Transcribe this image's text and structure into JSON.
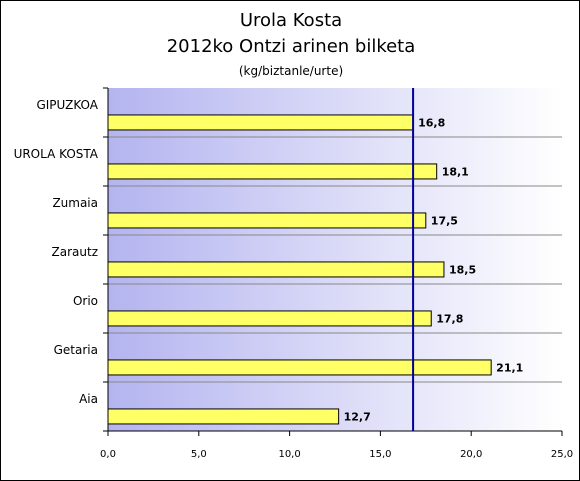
{
  "chart_data": {
    "type": "bar",
    "orientation": "horizontal",
    "title": "Urola Kosta",
    "subtitle": "2012ko Ontzi arinen bilketa",
    "unit": "(kg/biztanle/urte)",
    "categories": [
      "GIPUZKOA",
      "UROLA KOSTA",
      "Zumaia",
      "Zarautz",
      "Orio",
      "Getaria",
      "Aia"
    ],
    "values": [
      16.8,
      18.1,
      17.5,
      18.5,
      17.8,
      21.1,
      12.7
    ],
    "value_labels": [
      "16,8",
      "18,1",
      "17,5",
      "18,5",
      "17,8",
      "21,1",
      "12,7"
    ],
    "xlim": [
      0,
      25
    ],
    "xticks": [
      0,
      5,
      10,
      15,
      20,
      25
    ],
    "xtick_labels": [
      "0,0",
      "5,0",
      "10,0",
      "15,0",
      "20,0",
      "25,0"
    ],
    "reference_line": 16.8,
    "grid": false,
    "colors": {
      "bar_fill": "#ffff66",
      "bar_stroke": "#000000",
      "reference_line": "#000099",
      "plot_bg_left": "#b4b4f0",
      "plot_bg_right": "#ffffff",
      "separator": "#888888"
    }
  }
}
